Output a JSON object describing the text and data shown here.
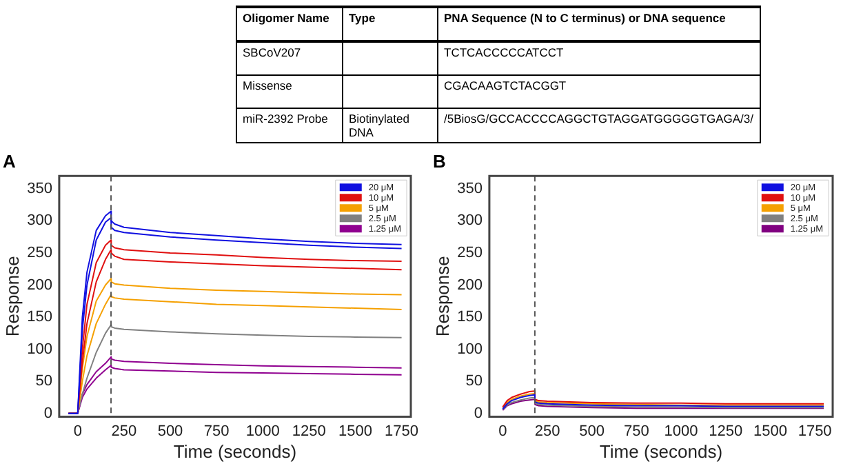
{
  "chart_data": [
    {
      "type": "other",
      "annotations": [
        "Oligomer Name",
        "Type",
        "PNA Sequence (N to C terminus) or DNA sequence",
        "SBCoV207",
        null,
        "TCTCACCCCCATCCT",
        "Missense",
        null,
        "CGACAAGTCTACGGT",
        "miR-2392 Probe",
        "Biotinylated DNA",
        "/5BiosG/GCCACCCCAGGCTGTAGGATGGGGGTGAGA/3/"
      ]
    },
    {
      "type": "line",
      "title": "A",
      "xlabel": "Time (seconds)",
      "ylabel": "Response",
      "xlim": [
        -100,
        1800
      ],
      "xticks": [
        0,
        250,
        500,
        750,
        1000,
        1250,
        1500,
        1750
      ],
      "ylim": [
        -5,
        370
      ],
      "yticks": [
        0,
        50,
        100,
        150,
        200,
        250,
        300,
        350
      ],
      "grid": false,
      "legend": "top right",
      "marker": "none",
      "line_style": "solid",
      "x": [
        -50,
        0,
        25,
        50,
        100,
        150,
        180,
        181,
        200,
        250,
        500,
        750,
        1000,
        1250,
        1500,
        1750
      ],
      "ref_lines": [
        {
          "axis": "x",
          "value": 180,
          "color": "#555555",
          "line_style": "dashed"
        }
      ],
      "series": [
        {
          "name": "20 μM",
          "color": "#1010e0",
          "values": [
            0,
            0,
            150,
            220,
            285,
            308,
            315,
            300,
            295,
            290,
            282,
            277,
            272,
            268,
            265,
            263
          ]
        },
        {
          "color": "#1010e0",
          "values": [
            0,
            0,
            130,
            200,
            270,
            298,
            305,
            290,
            285,
            282,
            275,
            270,
            266,
            262,
            259,
            257
          ]
        },
        {
          "name": "10 μM",
          "color": "#e01010",
          "values": [
            0,
            0,
            100,
            170,
            235,
            262,
            270,
            262,
            258,
            255,
            250,
            247,
            243,
            240,
            238,
            237
          ]
        },
        {
          "color": "#e01010",
          "values": [
            0,
            0,
            80,
            140,
            205,
            240,
            255,
            250,
            245,
            240,
            236,
            233,
            230,
            228,
            226,
            224
          ]
        },
        {
          "name": "5 μM",
          "color": "#f5a000",
          "values": [
            0,
            0,
            70,
            120,
            175,
            200,
            210,
            205,
            202,
            200,
            195,
            192,
            190,
            188,
            186,
            185
          ]
        },
        {
          "color": "#f5a000",
          "values": [
            0,
            0,
            50,
            90,
            140,
            170,
            185,
            182,
            180,
            178,
            174,
            170,
            168,
            166,
            164,
            162
          ]
        },
        {
          "name": "2.5 μM",
          "color": "#808080",
          "values": [
            0,
            0,
            30,
            55,
            95,
            125,
            138,
            135,
            133,
            131,
            127,
            124,
            122,
            120,
            119,
            118
          ]
        },
        {
          "name": "1.25 μM",
          "color": "#900090",
          "values": [
            0,
            0,
            30,
            45,
            65,
            78,
            88,
            85,
            83,
            81,
            78,
            76,
            74,
            73,
            72,
            71
          ]
        },
        {
          "color": "#900090",
          "values": [
            0,
            0,
            25,
            38,
            55,
            68,
            75,
            72,
            70,
            68,
            66,
            64,
            63,
            62,
            61,
            60
          ]
        }
      ]
    },
    {
      "type": "line",
      "title": "B",
      "xlabel": "Time (seconds)",
      "ylabel": "Response",
      "xlim": [
        -75,
        1850
      ],
      "xticks": [
        0,
        250,
        500,
        750,
        1000,
        1250,
        1500,
        1750
      ],
      "ylim": [
        -5,
        370
      ],
      "yticks": [
        0,
        50,
        100,
        150,
        200,
        250,
        300,
        350
      ],
      "grid": false,
      "legend": "top right",
      "marker": "none",
      "line_style": "solid",
      "x": [
        0,
        25,
        50,
        100,
        150,
        180,
        181,
        200,
        250,
        500,
        750,
        1000,
        1250,
        1500,
        1800
      ],
      "ref_lines": [
        {
          "axis": "x",
          "value": 180,
          "color": "#555555",
          "line_style": "dashed"
        }
      ],
      "series": [
        {
          "name": "20 μM",
          "color": "#1010e0",
          "values": [
            7,
            15,
            20,
            25,
            28,
            29,
            18,
            16,
            15,
            13,
            12,
            12,
            11,
            11,
            11
          ]
        },
        {
          "name": "10 μM",
          "color": "#e01010",
          "values": [
            10,
            20,
            25,
            30,
            34,
            35,
            22,
            20,
            19,
            17,
            16,
            16,
            15,
            15,
            15
          ]
        },
        {
          "name": "5 μM",
          "color": "#f5a000",
          "values": [
            8,
            17,
            22,
            27,
            30,
            31,
            20,
            18,
            17,
            15,
            14,
            13,
            13,
            13,
            13
          ]
        },
        {
          "name": "2.5 μM",
          "color": "#808080",
          "values": [
            6,
            13,
            17,
            21,
            24,
            25,
            16,
            14,
            13,
            11,
            10,
            10,
            9,
            9,
            9
          ]
        },
        {
          "name": "1.25 μM",
          "color": "#800080",
          "values": [
            5,
            12,
            15,
            19,
            21,
            22,
            14,
            12,
            11,
            9,
            8,
            8,
            8,
            8,
            8
          ]
        }
      ]
    }
  ]
}
